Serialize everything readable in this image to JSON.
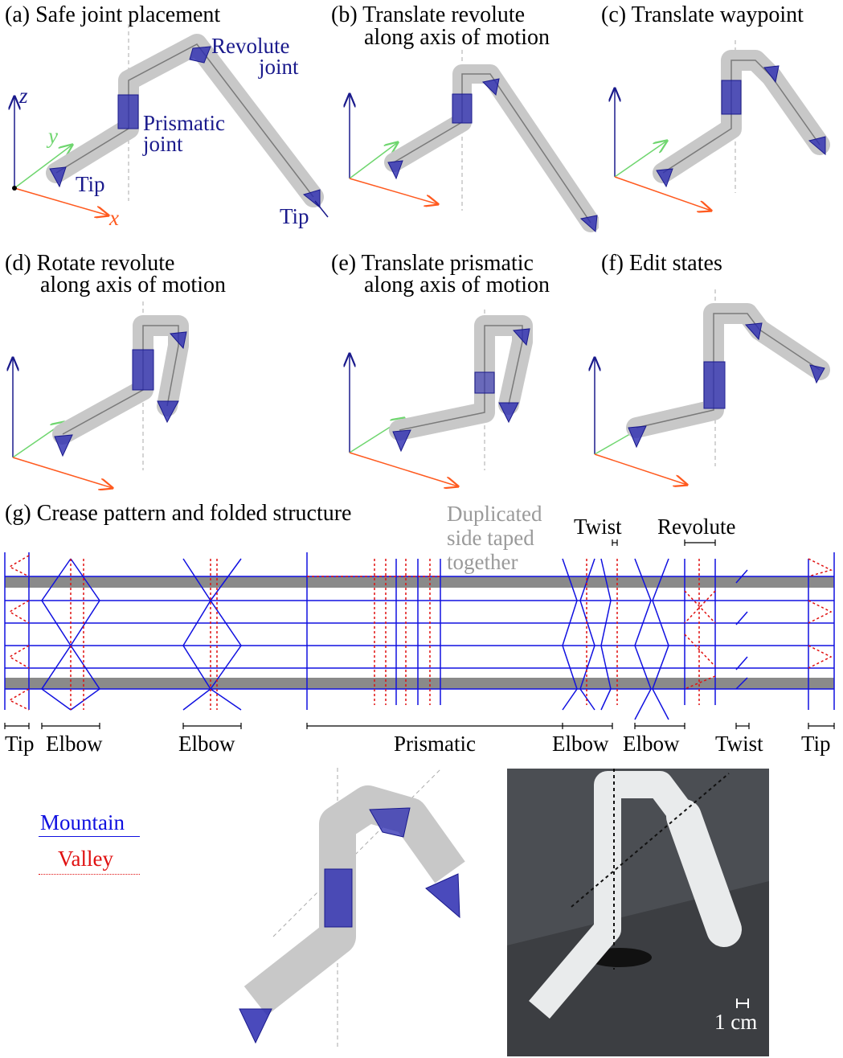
{
  "panels": [
    {
      "id": "a",
      "title": "(a) Safe joint placement"
    },
    {
      "id": "b",
      "title": "(b) Translate revolute",
      "subtitle": "along axis of motion"
    },
    {
      "id": "c",
      "title": "(c) Translate waypoint"
    },
    {
      "id": "d",
      "title": "(d) Rotate revolute",
      "subtitle": "along axis of motion"
    },
    {
      "id": "e",
      "title": "(e) Translate prismatic",
      "subtitle": "along axis of motion"
    },
    {
      "id": "f",
      "title": "(f) Edit states"
    },
    {
      "id": "g",
      "title": "(g) Crease pattern and folded structure"
    }
  ],
  "panel_a_labels": {
    "revolute": "Revolute",
    "revolute2": "joint",
    "prismatic": "Prismatic",
    "prismatic2": "joint",
    "tip_left": "Tip",
    "tip_right": "Tip",
    "axis_x": "x",
    "axis_y": "y",
    "axis_z": "z"
  },
  "crease_top_labels": {
    "duplicated1": "Duplicated",
    "duplicated2": "side taped",
    "duplicated3": "together",
    "twist": "Twist",
    "revolute": "Revolute"
  },
  "crease_bottom_labels": [
    "Tip",
    "Elbow",
    "Elbow",
    "Prismatic",
    "Elbow",
    "Elbow",
    "Twist",
    "Tip"
  ],
  "legend": {
    "mountain": "Mountain",
    "valley": "Valley"
  },
  "colors": {
    "mountain": "#1010e0",
    "valley": "#e01010",
    "axis_x": "#ff5a1f",
    "axis_y": "#6fd66f",
    "axis_z": "#1a1a8c",
    "joint": "#1a1a8c"
  },
  "photo": {
    "scale_label": "1 cm"
  }
}
